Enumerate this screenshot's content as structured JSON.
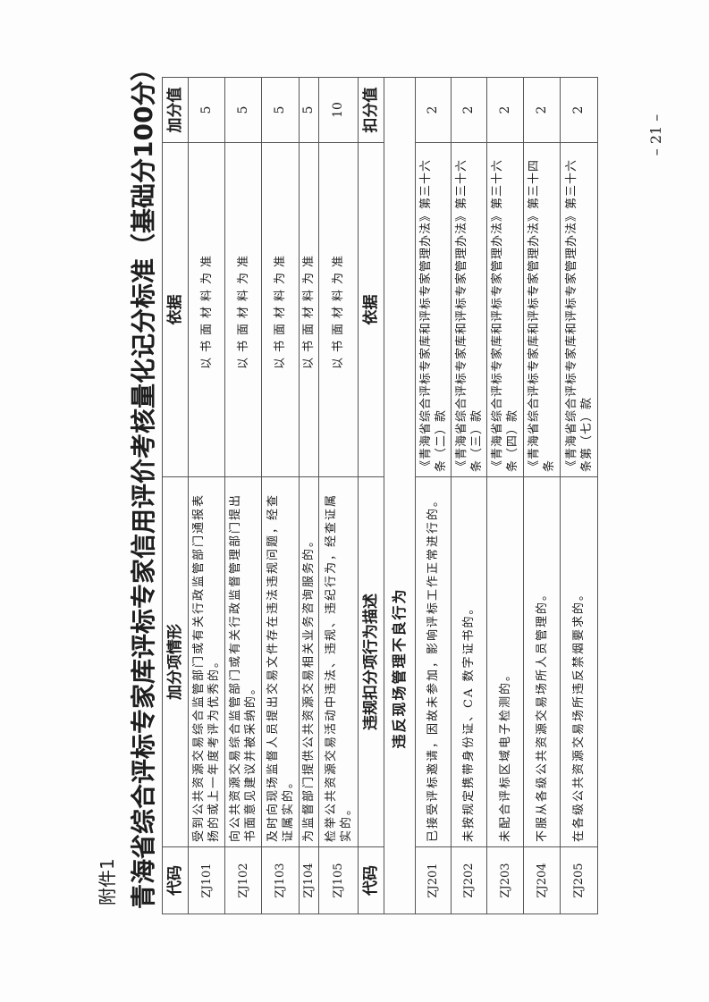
{
  "attachment_label": "附件1",
  "title": "青海省综合评标专家库评标专家信用评价考核量化记分标准（基础分100分）",
  "page_number": "– 21 –",
  "bonus_section": {
    "headers": {
      "code": "代码",
      "description": "加分项情形",
      "basis": "依据",
      "value": "加分值"
    },
    "rows": [
      {
        "code": "ZJ101",
        "description": "受到公共资源交易综合监管部门或有关行政监管部门通报表扬的或上一年度考评为优秀的。",
        "basis": "以书面材料为准",
        "value": "5"
      },
      {
        "code": "ZJ102",
        "description": "向公共资源交易综合监管部门或有关行政监督管理部门提出书面意见建议并被采纳的。",
        "basis": "以书面材料为准",
        "value": "5"
      },
      {
        "code": "ZJ103",
        "description": "及时向现场监督人员提出交易文件存在违法违规问题，经查证属实的。",
        "basis": "以书面材料为准",
        "value": "5"
      },
      {
        "code": "ZJ104",
        "description": "为监督部门提供公共资源交易相关业务咨询服务的。",
        "basis": "以书面材料为准",
        "value": "5"
      },
      {
        "code": "ZJ105",
        "description": "检举公共资源交易活动中违法、违规、违纪行为，经查证属实的。",
        "basis": "以书面材料为准",
        "value": "10"
      }
    ]
  },
  "penalty_section": {
    "headers": {
      "code": "代码",
      "description": "违规扣分项行为描述",
      "basis": "依据",
      "value": "扣分值"
    },
    "group_title": "违反现场管理不良行为",
    "rows": [
      {
        "code": "ZJ201",
        "description": "已接受评标邀请，因故未参加，影响评标工作正常进行的。",
        "basis": "《青海省综合评标专家库和评标专家管理办法》第三十六条（二）款",
        "value": "2"
      },
      {
        "code": "ZJ202",
        "description": "未按规定携带身份证、CA 数字证书的。",
        "basis": "《青海省综合评标专家库和评标专家管理办法》第三十六条（三）款",
        "value": "2"
      },
      {
        "code": "ZJ203",
        "description": "未配合评标区域电子检测的。",
        "basis": "《青海省综合评标专家库和评标专家管理办法》第三十六条（四）款",
        "value": "2"
      },
      {
        "code": "ZJ204",
        "description": "不服从各级公共资源交易场所人员管理的。",
        "basis": "《青海省综合评标专家库和评标专家管理办法》第三十四条",
        "value": "2"
      },
      {
        "code": "ZJ205",
        "description": "在各级公共资源交易场所违反禁烟要求的。",
        "basis": "《青海省综合评标专家库和评标专家管理办法》第三十六条第（七）款",
        "value": "2"
      }
    ]
  }
}
